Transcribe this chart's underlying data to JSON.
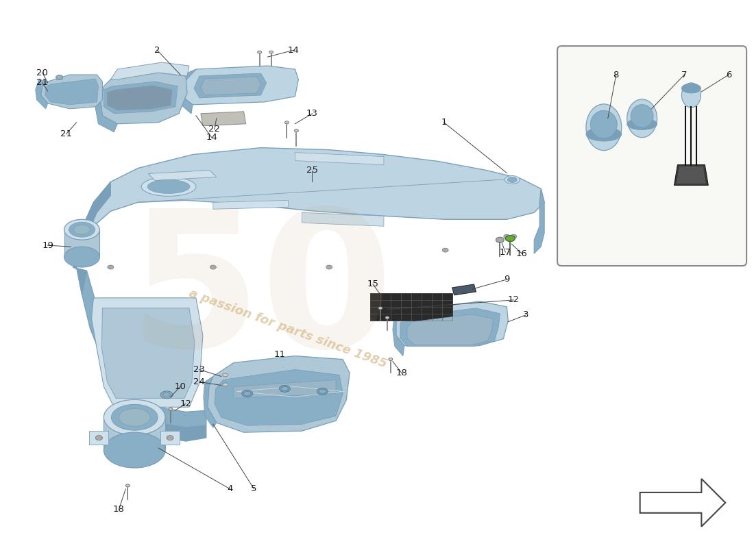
{
  "bg_color": "#ffffff",
  "part_color": "#aec8d8",
  "part_color2": "#bdd4e2",
  "part_color_dark": "#88afc5",
  "part_color_light": "#cfe0ea",
  "part_color_side": "#7a9fb8",
  "label_color": "#1a1a1a",
  "line_color": "#444444",
  "watermark_color": "#c8a060",
  "font_size": 9.5,
  "box_bg": "#f8f8f4",
  "box_edge": "#888888",
  "arrow_color": "#444444"
}
